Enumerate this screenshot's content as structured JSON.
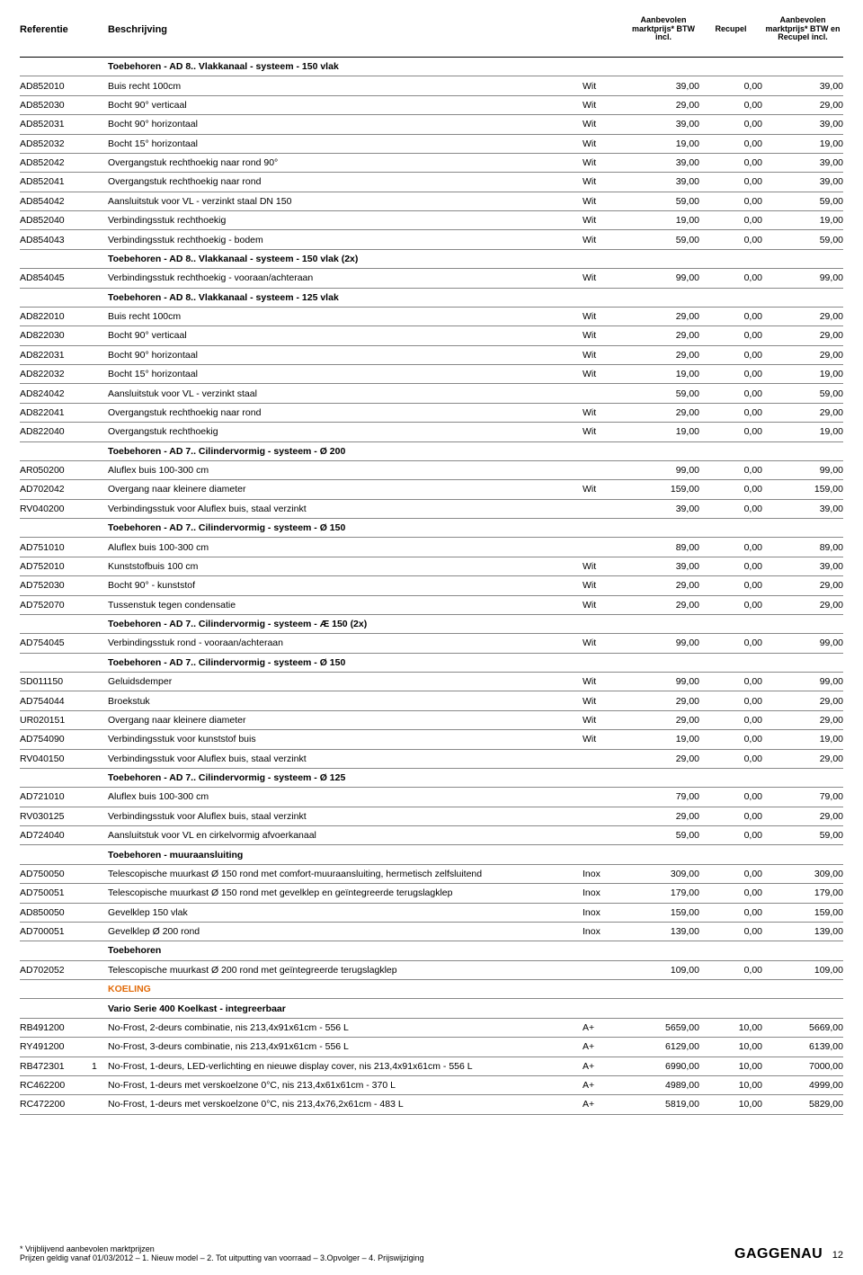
{
  "header": {
    "ref": "Referentie",
    "desc": "Beschrijving",
    "p1": "Aanbevolen marktprijs* BTW incl.",
    "p2": "Recupel",
    "p3": "Aanbevolen marktprijs* BTW en Recupel incl."
  },
  "rows": [
    {
      "type": "section",
      "desc": "Toebehoren - AD 8.. Vlakkanaal - systeem - 150 vlak"
    },
    {
      "ref": "AD852010",
      "desc": "Buis recht 100cm",
      "mat": "Wit",
      "p1": "39,00",
      "p2": "0,00",
      "p3": "39,00"
    },
    {
      "ref": "AD852030",
      "desc": "Bocht 90° verticaal",
      "mat": "Wit",
      "p1": "29,00",
      "p2": "0,00",
      "p3": "29,00"
    },
    {
      "ref": "AD852031",
      "desc": "Bocht 90° horizontaal",
      "mat": "Wit",
      "p1": "39,00",
      "p2": "0,00",
      "p3": "39,00"
    },
    {
      "ref": "AD852032",
      "desc": "Bocht 15° horizontaal",
      "mat": "Wit",
      "p1": "19,00",
      "p2": "0,00",
      "p3": "19,00"
    },
    {
      "ref": "AD852042",
      "desc": "Overgangstuk rechthoekig naar rond 90°",
      "mat": "Wit",
      "p1": "39,00",
      "p2": "0,00",
      "p3": "39,00"
    },
    {
      "ref": "AD852041",
      "desc": "Overgangstuk rechthoekig naar rond",
      "mat": "Wit",
      "p1": "39,00",
      "p2": "0,00",
      "p3": "39,00"
    },
    {
      "ref": "AD854042",
      "desc": "Aansluitstuk voor VL - verzinkt staal DN 150",
      "mat": "Wit",
      "p1": "59,00",
      "p2": "0,00",
      "p3": "59,00"
    },
    {
      "ref": "AD852040",
      "desc": "Verbindingsstuk rechthoekig",
      "mat": "Wit",
      "p1": "19,00",
      "p2": "0,00",
      "p3": "19,00"
    },
    {
      "ref": "AD854043",
      "desc": "Verbindingsstuk rechthoekig - bodem",
      "mat": "Wit",
      "p1": "59,00",
      "p2": "0,00",
      "p3": "59,00"
    },
    {
      "type": "section",
      "desc": "Toebehoren - AD 8.. Vlakkanaal - systeem - 150 vlak (2x)"
    },
    {
      "ref": "AD854045",
      "desc": "Verbindingsstuk rechthoekig - vooraan/achteraan",
      "mat": "Wit",
      "p1": "99,00",
      "p2": "0,00",
      "p3": "99,00"
    },
    {
      "type": "section",
      "desc": "Toebehoren - AD 8.. Vlakkanaal - systeem - 125 vlak"
    },
    {
      "ref": "AD822010",
      "desc": "Buis recht 100cm",
      "mat": "Wit",
      "p1": "29,00",
      "p2": "0,00",
      "p3": "29,00"
    },
    {
      "ref": "AD822030",
      "desc": "Bocht 90° verticaal",
      "mat": "Wit",
      "p1": "29,00",
      "p2": "0,00",
      "p3": "29,00"
    },
    {
      "ref": "AD822031",
      "desc": "Bocht 90° horizontaal",
      "mat": "Wit",
      "p1": "29,00",
      "p2": "0,00",
      "p3": "29,00"
    },
    {
      "ref": "AD822032",
      "desc": "Bocht 15° horizontaal",
      "mat": "Wit",
      "p1": "19,00",
      "p2": "0,00",
      "p3": "19,00"
    },
    {
      "ref": "AD824042",
      "desc": "Aansluitstuk voor VL - verzinkt staal",
      "mat": "",
      "p1": "59,00",
      "p2": "0,00",
      "p3": "59,00"
    },
    {
      "ref": "AD822041",
      "desc": "Overgangstuk rechthoekig naar rond",
      "mat": "Wit",
      "p1": "29,00",
      "p2": "0,00",
      "p3": "29,00"
    },
    {
      "ref": "AD822040",
      "desc": "Overgangstuk rechthoekig",
      "mat": "Wit",
      "p1": "19,00",
      "p2": "0,00",
      "p3": "19,00"
    },
    {
      "type": "section",
      "desc": "Toebehoren - AD 7.. Cilindervormig - systeem - Ø 200"
    },
    {
      "ref": "AR050200",
      "desc": "Aluflex buis 100-300 cm",
      "mat": "",
      "p1": "99,00",
      "p2": "0,00",
      "p3": "99,00"
    },
    {
      "ref": "AD702042",
      "desc": "Overgang naar kleinere diameter",
      "mat": "Wit",
      "p1": "159,00",
      "p2": "0,00",
      "p3": "159,00"
    },
    {
      "ref": "RV040200",
      "desc": "Verbindingsstuk voor Aluflex buis, staal verzinkt",
      "mat": "",
      "p1": "39,00",
      "p2": "0,00",
      "p3": "39,00"
    },
    {
      "type": "section",
      "desc": "Toebehoren - AD 7.. Cilindervormig - systeem - Ø 150"
    },
    {
      "ref": "AD751010",
      "desc": "Aluflex buis 100-300 cm",
      "mat": "",
      "p1": "89,00",
      "p2": "0,00",
      "p3": "89,00"
    },
    {
      "ref": "AD752010",
      "desc": "Kunststofbuis 100 cm",
      "mat": "Wit",
      "p1": "39,00",
      "p2": "0,00",
      "p3": "39,00"
    },
    {
      "ref": "AD752030",
      "desc": "Bocht 90° - kunststof",
      "mat": "Wit",
      "p1": "29,00",
      "p2": "0,00",
      "p3": "29,00"
    },
    {
      "ref": "AD752070",
      "desc": "Tussenstuk tegen condensatie",
      "mat": "Wit",
      "p1": "29,00",
      "p2": "0,00",
      "p3": "29,00"
    },
    {
      "type": "section",
      "desc": "Toebehoren - AD 7.. Cilindervormig - systeem - Æ 150 (2x)"
    },
    {
      "ref": "AD754045",
      "desc": "Verbindingsstuk rond - vooraan/achteraan",
      "mat": "Wit",
      "p1": "99,00",
      "p2": "0,00",
      "p3": "99,00"
    },
    {
      "type": "section",
      "desc": "Toebehoren - AD 7.. Cilindervormig - systeem - Ø 150"
    },
    {
      "ref": "SD011150",
      "desc": "Geluidsdemper",
      "mat": "Wit",
      "p1": "99,00",
      "p2": "0,00",
      "p3": "99,00"
    },
    {
      "ref": "AD754044",
      "desc": "Broekstuk",
      "mat": "Wit",
      "p1": "29,00",
      "p2": "0,00",
      "p3": "29,00"
    },
    {
      "ref": "UR020151",
      "desc": "Overgang naar kleinere diameter",
      "mat": "Wit",
      "p1": "29,00",
      "p2": "0,00",
      "p3": "29,00"
    },
    {
      "ref": "AD754090",
      "desc": "Verbindingsstuk voor kunststof buis",
      "mat": "Wit",
      "p1": "19,00",
      "p2": "0,00",
      "p3": "19,00"
    },
    {
      "ref": "RV040150",
      "desc": "Verbindingsstuk voor Aluflex buis, staal verzinkt",
      "mat": "",
      "p1": "29,00",
      "p2": "0,00",
      "p3": "29,00"
    },
    {
      "type": "section",
      "desc": "Toebehoren - AD 7.. Cilindervormig - systeem - Ø 125"
    },
    {
      "ref": "AD721010",
      "desc": "Aluflex buis 100-300 cm",
      "mat": "",
      "p1": "79,00",
      "p2": "0,00",
      "p3": "79,00"
    },
    {
      "ref": "RV030125",
      "desc": "Verbindingsstuk voor Aluflex buis, staal verzinkt",
      "mat": "",
      "p1": "29,00",
      "p2": "0,00",
      "p3": "29,00"
    },
    {
      "ref": "AD724040",
      "desc": "Aansluitstuk voor VL en cirkelvormig afvoerkanaal",
      "mat": "",
      "p1": "59,00",
      "p2": "0,00",
      "p3": "59,00"
    },
    {
      "type": "section",
      "desc": "Toebehoren - muuraansluiting"
    },
    {
      "ref": "AD750050",
      "desc": "Telescopische muurkast Ø 150 rond met comfort-muuraansluiting, hermetisch zelfsluitend",
      "mat": "Inox",
      "p1": "309,00",
      "p2": "0,00",
      "p3": "309,00"
    },
    {
      "ref": "AD750051",
      "desc": "Telescopische muurkast Ø 150 rond met gevelklep en geïntegreerde terugslagklep",
      "mat": "Inox",
      "p1": "179,00",
      "p2": "0,00",
      "p3": "179,00"
    },
    {
      "ref": "AD850050",
      "desc": "Gevelklep 150 vlak",
      "mat": "Inox",
      "p1": "159,00",
      "p2": "0,00",
      "p3": "159,00"
    },
    {
      "ref": "AD700051",
      "desc": "Gevelklep Ø 200 rond",
      "mat": "Inox",
      "p1": "139,00",
      "p2": "0,00",
      "p3": "139,00"
    },
    {
      "type": "section",
      "desc": "Toebehoren"
    },
    {
      "ref": "AD702052",
      "desc": "Telescopische muurkast Ø 200 rond met geïntegreerde terugslagklep",
      "mat": "",
      "p1": "109,00",
      "p2": "0,00",
      "p3": "109,00"
    },
    {
      "type": "koeling",
      "desc": "KOELING"
    },
    {
      "type": "section",
      "desc": "Vario Serie 400  Koelkast - integreerbaar"
    },
    {
      "ref": "RB491200",
      "desc": "No-Frost, 2-deurs combinatie, nis 213,4x91x61cm - 556 L",
      "mat": "A+",
      "p1": "5659,00",
      "p2": "10,00",
      "p3": "5669,00"
    },
    {
      "ref": "RY491200",
      "desc": "No-Frost, 3-deurs combinatie, nis 213,4x91x61cm - 556 L",
      "mat": "A+",
      "p1": "6129,00",
      "p2": "10,00",
      "p3": "6139,00"
    },
    {
      "ref": "RB472301",
      "flag": "1",
      "desc": "No-Frost, 1-deurs, LED-verlichting en nieuwe display cover, nis 213,4x91x61cm - 556 L",
      "mat": "A+",
      "p1": "6990,00",
      "p2": "10,00",
      "p3": "7000,00"
    },
    {
      "ref": "RC462200",
      "desc": "No-Frost, 1-deurs met verskoelzone 0°C, nis 213,4x61x61cm - 370 L",
      "mat": "A+",
      "p1": "4989,00",
      "p2": "10,00",
      "p3": "4999,00"
    },
    {
      "ref": "RC472200",
      "desc": "No-Frost, 1-deurs met verskoelzone 0°C, nis 213,4x76,2x61cm - 483 L",
      "mat": "A+",
      "p1": "5819,00",
      "p2": "10,00",
      "p3": "5829,00"
    }
  ],
  "footer": {
    "line1": "* Vrijblijvend aanbevolen marktprijzen",
    "line2": "Prijzen geldig vanaf 01/03/2012 – 1. Nieuw model – 2. Tot uitputting van voorraad  – 3.Opvolger – 4. Prijswijziging",
    "brand": "GAGGENAU",
    "page": "12"
  }
}
